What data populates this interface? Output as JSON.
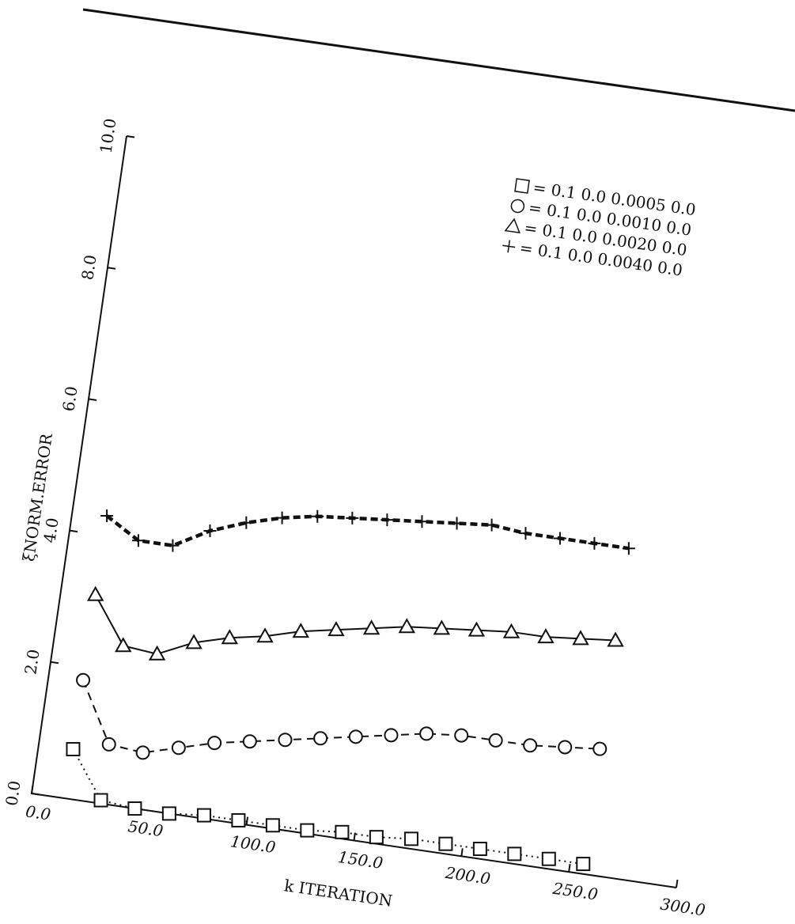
{
  "chart_data": {
    "type": "line",
    "x_label": "k ITERATION",
    "y_label": "ξNORM.ERROR",
    "x": [
      16,
      32,
      48,
      64,
      80,
      96,
      112,
      128,
      144,
      160,
      176,
      192,
      208,
      224,
      240,
      256
    ],
    "series": [
      {
        "name": "= 0.1 0.0 0.0005 0.0",
        "marker": "square",
        "dash": "dotted",
        "color": "#111",
        "values": [
          0.75,
          0.05,
          0.0,
          0.0,
          0.05,
          0.05,
          0.05,
          0.05,
          0.1,
          0.1,
          0.15,
          0.15,
          0.15,
          0.15,
          0.15,
          0.15
        ]
      },
      {
        "name": "= 0.1 0.0 0.0010 0.0",
        "marker": "circle",
        "dash": "dashed",
        "color": "#111",
        "values": [
          1.8,
          0.9,
          0.85,
          1.0,
          1.15,
          1.25,
          1.35,
          1.45,
          1.55,
          1.65,
          1.75,
          1.8,
          1.8,
          1.8,
          1.85,
          1.9
        ]
      },
      {
        "name": "= 0.1 0.0 0.0020 0.0",
        "marker": "triangle",
        "dash": "solid",
        "color": "#111",
        "values": [
          3.1,
          2.4,
          2.35,
          2.6,
          2.75,
          2.85,
          3.0,
          3.1,
          3.2,
          3.3,
          3.35,
          3.4,
          3.45,
          3.45,
          3.5,
          3.55
        ]
      },
      {
        "name": "= 0.1 0.0 0.0040 0.0",
        "marker": "plus",
        "dash": "thick-dashed",
        "color": "#111",
        "values": [
          4.3,
          4.0,
          4.0,
          4.3,
          4.5,
          4.65,
          4.75,
          4.8,
          4.85,
          4.9,
          4.95,
          5.0,
          4.95,
          4.95,
          4.95,
          4.95
        ]
      }
    ],
    "xlim": [
      0,
      300
    ],
    "xticks": [
      {
        "value": 0,
        "label": "0.0"
      },
      {
        "value": 50,
        "label": "50.0"
      },
      {
        "value": 100,
        "label": "100.0"
      },
      {
        "value": 150,
        "label": "150.0"
      },
      {
        "value": 200,
        "label": "200.0"
      },
      {
        "value": 250,
        "label": "250.0"
      },
      {
        "value": 300,
        "label": "300.0"
      }
    ],
    "ylim": [
      0,
      10
    ],
    "yticks": [
      {
        "value": 0,
        "label": "0.0"
      },
      {
        "value": 2,
        "label": "2.0"
      },
      {
        "value": 4,
        "label": "4.0"
      },
      {
        "value": 6,
        "label": "6.0"
      },
      {
        "value": 8,
        "label": "8.0"
      },
      {
        "value": 10,
        "label": "10.0"
      }
    ],
    "legend": "upper-right"
  }
}
